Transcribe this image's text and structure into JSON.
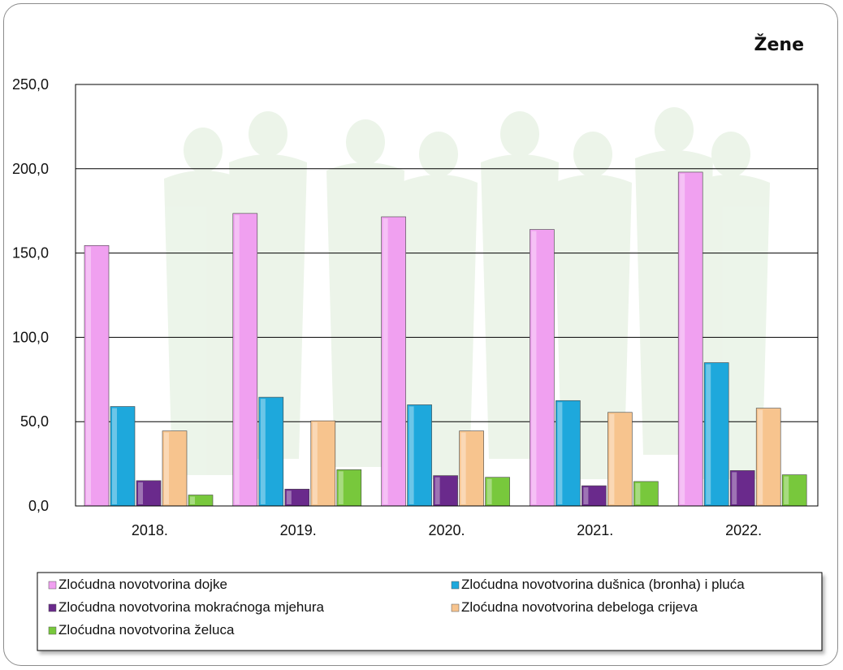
{
  "chart_data": {
    "type": "bar",
    "title": "Žene",
    "xlabel": "",
    "ylabel": "",
    "ylim": [
      0,
      250
    ],
    "yticks": [
      "0,0",
      "50,0",
      "100,0",
      "150,0",
      "200,0",
      "250,0"
    ],
    "ytick_values": [
      0,
      50,
      100,
      150,
      200,
      250
    ],
    "grid": true,
    "legend_position": "bottom",
    "categories": [
      "2018.",
      "2019.",
      "2020.",
      "2021.",
      "2022."
    ],
    "series": [
      {
        "name": "Zloćudna novotvorina dojke",
        "color": "#f0a0f0",
        "values": [
          154.5,
          173.5,
          171.5,
          164.0,
          198.0
        ]
      },
      {
        "name": "Zloćudna novotvorina dušnica (bronha) i pluća",
        "color": "#1ea8dc",
        "values": [
          59.0,
          64.5,
          60.0,
          62.5,
          85.0
        ]
      },
      {
        "name": "Zloćudna novotvorina mokraćnoga mjehura",
        "color": "#6a2a8c",
        "values": [
          15.0,
          10.0,
          18.0,
          12.0,
          21.0
        ]
      },
      {
        "name": "Zloćudna novotvorina debeloga crijeva",
        "color": "#f7c48e",
        "values": [
          44.5,
          50.5,
          44.5,
          55.5,
          58.0
        ]
      },
      {
        "name": "Zloćudna novotvorina želuca",
        "color": "#78c83c",
        "values": [
          6.5,
          21.5,
          17.0,
          14.5,
          18.5
        ]
      }
    ]
  }
}
